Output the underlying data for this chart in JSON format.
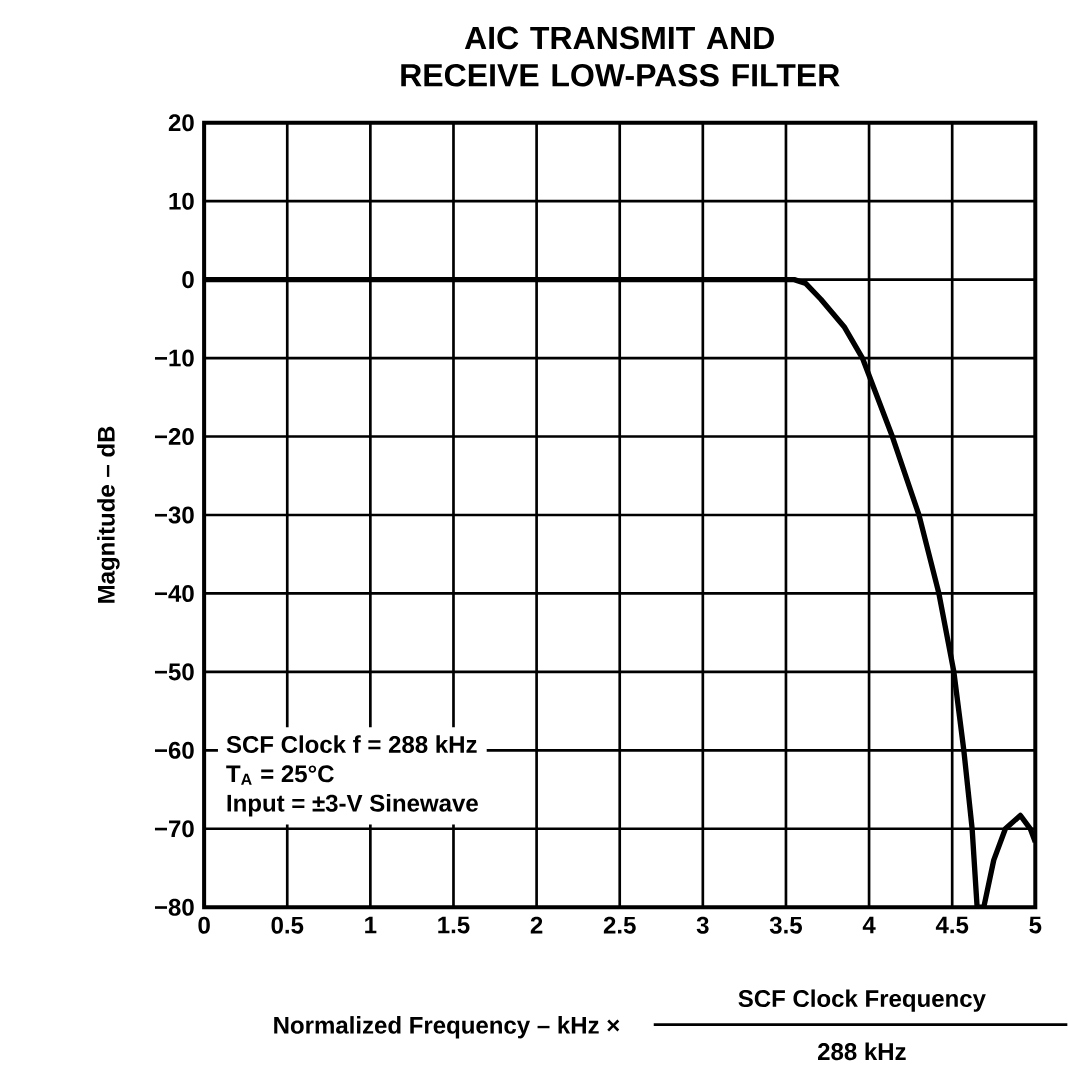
{
  "chart_data": {
    "type": "line",
    "title": "AIC TRANSMIT AND RECEIVE LOW-PASS FILTER",
    "xlabel": "Normalized Frequency – kHz ×",
    "ylabel": "Magnitude – dB",
    "x": [
      0,
      3.5,
      3.55,
      3.62,
      3.71,
      3.85,
      3.96,
      4.14,
      4.3,
      4.42,
      4.51,
      4.57,
      4.62,
      4.65,
      null,
      4.69,
      4.75,
      4.82,
      4.91,
      4.97,
      5
    ],
    "series": [
      {
        "color": "#000000",
        "values": [
          0,
          0,
          0,
          -0.5,
          -2.5,
          -6,
          -10,
          -20,
          -30,
          -40,
          -50,
          -60,
          -70,
          -80,
          null,
          -80,
          -74,
          -70,
          -68.3,
          -70,
          -71.7
        ]
      }
    ],
    "xlim": [
      0,
      5
    ],
    "ylim": [
      -80,
      20
    ],
    "xticks": [
      0,
      0.5,
      1,
      1.5,
      2,
      2.5,
      3,
      3.5,
      4,
      4.5,
      5
    ],
    "yticks": [
      {
        "value": -80,
        "label": "−80"
      },
      {
        "value": -70,
        "label": "−70"
      },
      {
        "value": -60,
        "label": "−60"
      },
      {
        "value": -50,
        "label": "−50"
      },
      {
        "value": -40,
        "label": "−40"
      },
      {
        "value": -30,
        "label": "−30"
      },
      {
        "value": -20,
        "label": "−20"
      },
      {
        "value": -10,
        "label": "−10"
      },
      0,
      10,
      20
    ],
    "grid": true,
    "marker": "none",
    "line_style": "solid",
    "annotations": [
      "SCF Clock f = 288 kHz",
      "T$_{A}$ = 25°C",
      "Input = ±3-V Sinewave",
      "SCF Clock Frequency",
      "288 kHz"
    ]
  }
}
